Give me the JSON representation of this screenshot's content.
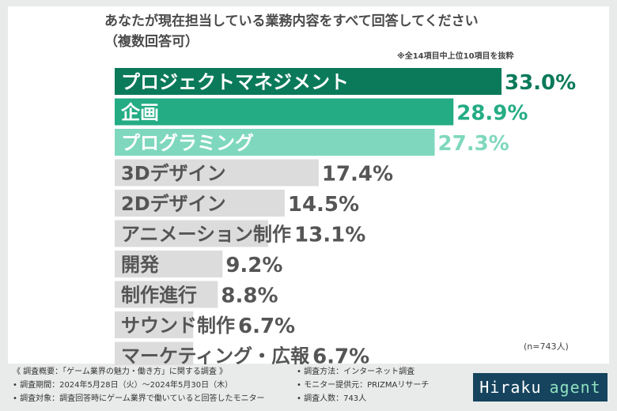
{
  "header": {
    "title_line1": "あなたが現在担当している業務内容をすべて回答してください",
    "title_line2": "（複数回答可）",
    "note": "※全14項目中上位10項目を抜粋",
    "sample": "(n=743人)"
  },
  "chart_data": {
    "type": "bar",
    "orientation": "horizontal",
    "title": "あなたが現在担当している業務内容をすべて回答してください（複数回答可）",
    "categories": [
      "プロジェクトマネジメント",
      "企画",
      "プログラミング",
      "3Dデザイン",
      "2Dデザイン",
      "アニメーション制作",
      "開発",
      "制作進行",
      "サウンド制作",
      "マーケティング・広報"
    ],
    "values": [
      33.0,
      28.9,
      27.3,
      17.4,
      14.5,
      13.1,
      9.2,
      8.8,
      6.7,
      6.7
    ],
    "value_labels": [
      "33.0%",
      "28.9%",
      "27.3%",
      "17.4%",
      "14.5%",
      "13.1%",
      "9.2%",
      "8.8%",
      "6.7%",
      "6.7%"
    ],
    "unit": "%",
    "bar_colors": [
      "#0b7a5a",
      "#24ac84",
      "#7fd8bd",
      "#dcdcdc",
      "#dcdcdc",
      "#dcdcdc",
      "#dcdcdc",
      "#dcdcdc",
      "#dcdcdc",
      "#dcdcdc"
    ],
    "label_colors": [
      "#ffffff",
      "#ffffff",
      "#ffffff",
      "#555555",
      "#555555",
      "#555555",
      "#555555",
      "#555555",
      "#555555",
      "#555555"
    ],
    "value_colors": [
      "#0b7a5a",
      "#24ac84",
      "#7fd8bd",
      "#555555",
      "#555555",
      "#555555",
      "#555555",
      "#555555",
      "#555555",
      "#555555"
    ],
    "xlim": [
      0,
      33.0
    ],
    "grid": false
  },
  "footer": {
    "left": [
      "《 調査概要：「ゲーム業界の魅力・働き方」に関する調査 》",
      "• 調査期間：2024年5月28日（火）〜2024年5月30日（木）",
      "• 調査対象：調査回答時にゲーム業界で働いていると回答したモニター"
    ],
    "right": [
      "• 調査方法：インターネット調査",
      "• モニター提供元：PRIZMAリサーチ",
      "• 調査人数：743人"
    ]
  },
  "logo": {
    "part1": "Hiraku",
    "part2": "agent"
  }
}
